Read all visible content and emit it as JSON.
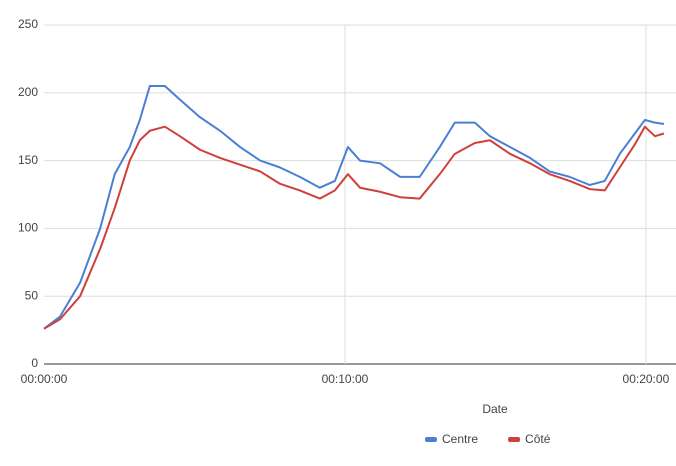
{
  "chart_data": {
    "type": "line",
    "x_label": "Date",
    "x": [
      0,
      32,
      72,
      112,
      141,
      171,
      191,
      211,
      241,
      271,
      311,
      351,
      391,
      431,
      470,
      510,
      550,
      580,
      606,
      630,
      670,
      710,
      749,
      789,
      819,
      859,
      889,
      929,
      969,
      1008,
      1048,
      1088,
      1118,
      1148,
      1178,
      1198,
      1218,
      1236
    ],
    "series": [
      {
        "name": "Centre",
        "color": "#4a7fd4",
        "values": [
          26,
          35,
          60,
          100,
          140,
          160,
          180,
          205,
          205,
          195,
          182,
          172,
          160,
          150,
          145,
          138,
          130,
          135,
          160,
          150,
          148,
          138,
          138,
          160,
          178,
          178,
          168,
          160,
          152,
          142,
          138,
          132,
          135,
          155,
          170,
          180,
          178,
          177
        ]
      },
      {
        "name": "Côté",
        "color": "#d0403a",
        "values": [
          26,
          33,
          50,
          85,
          115,
          150,
          165,
          172,
          175,
          168,
          158,
          152,
          147,
          142,
          133,
          128,
          122,
          128,
          140,
          130,
          127,
          123,
          122,
          140,
          155,
          163,
          165,
          155,
          148,
          140,
          135,
          129,
          128,
          145,
          162,
          175,
          168,
          170
        ]
      }
    ],
    "xlim": [
      0,
      1260
    ],
    "xticks": [
      {
        "value": 0,
        "label": "00:00:00"
      },
      {
        "value": 600,
        "label": "00:10:00"
      },
      {
        "value": 1200,
        "label": "00:20:00"
      }
    ],
    "ylim": [
      0,
      250
    ],
    "yticks": [
      0,
      50,
      100,
      150,
      200,
      250
    ],
    "grid": true,
    "legend": "bottom"
  }
}
